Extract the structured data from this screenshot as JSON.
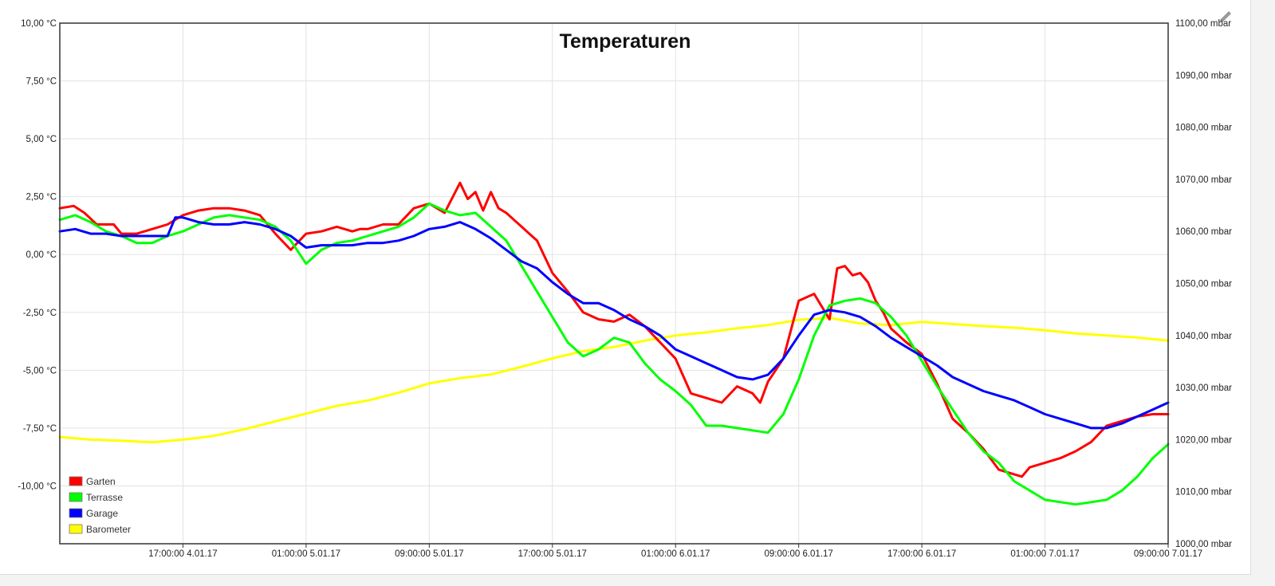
{
  "chart_data": {
    "type": "line",
    "title": "Temperaturen",
    "xlabel": "",
    "ylabel": "",
    "grid": true,
    "legend_position": "bottom-left",
    "x_ticks": [
      "17:00:00 4.01.17",
      "01:00:00 5.01.17",
      "09:00:00 5.01.17",
      "17:00:00 5.01.17",
      "01:00:00 6.01.17",
      "09:00:00 6.01.17",
      "17:00:00 6.01.17",
      "01:00:00 7.01.17",
      "09:00:00 7.01.17"
    ],
    "x_tick_hours": [
      8,
      16,
      24,
      32,
      40,
      48,
      56,
      64,
      72
    ],
    "xlim_hours": [
      0,
      72
    ],
    "y_left": {
      "ylim": [
        -12.5,
        10
      ],
      "ticks": [
        10,
        7.5,
        5,
        2.5,
        0,
        -2.5,
        -5,
        -7.5,
        -10
      ],
      "tick_labels": [
        "10,00 °C",
        "7,50 °C",
        "5,00 °C",
        "2,50 °C",
        "0,00 °C",
        "-2,50 °C",
        "-5,00 °C",
        "-7,50 °C",
        "-10,00 °C"
      ]
    },
    "y_right": {
      "ylim": [
        1000,
        1100
      ],
      "ticks": [
        1100,
        1090,
        1080,
        1070,
        1060,
        1050,
        1040,
        1030,
        1020,
        1010,
        1000
      ],
      "tick_labels": [
        "1100,00 mbar",
        "1090,00 mbar",
        "1080,00 mbar",
        "1070,00 mbar",
        "1060,00 mbar",
        "1050,00 mbar",
        "1040,00 mbar",
        "1030,00 mbar",
        "1020,00 mbar",
        "1010,00 mbar",
        "1000,00 mbar"
      ]
    },
    "series": [
      {
        "name": "Garten",
        "color": "#ff0000",
        "axis": "left",
        "x": [
          0,
          0.9,
          1.6,
          2.4,
          3,
          3.5,
          4,
          5,
          6,
          7,
          8,
          9,
          10,
          11,
          12,
          13,
          14,
          15,
          16,
          17,
          18,
          19,
          19.5,
          20,
          21,
          22,
          23,
          24,
          25,
          26,
          26.5,
          27,
          27.5,
          28,
          28.5,
          29,
          29.5,
          30,
          30.5,
          31,
          32,
          33,
          34,
          35,
          36,
          37,
          38,
          39,
          40,
          41,
          42,
          43,
          44,
          45,
          45.5,
          46,
          47,
          48,
          49,
          50,
          50.5,
          51,
          51.5,
          52,
          52.5,
          53,
          53.5,
          54,
          55,
          56,
          57,
          58,
          59,
          60,
          61,
          62,
          62.5,
          63,
          64,
          65,
          66,
          67,
          68,
          69,
          70,
          71,
          72
        ],
        "y": [
          2,
          2.1,
          1.8,
          1.3,
          1.3,
          1.3,
          0.9,
          0.9,
          1.1,
          1.3,
          1.7,
          1.9,
          2,
          2,
          1.9,
          1.7,
          0.9,
          0.2,
          0.9,
          1,
          1.2,
          1,
          1.1,
          1.1,
          1.3,
          1.3,
          2,
          2.2,
          1.8,
          3.1,
          2.4,
          2.7,
          1.9,
          2.7,
          2,
          1.8,
          1.5,
          1.2,
          0.9,
          0.6,
          -0.8,
          -1.6,
          -2.5,
          -2.8,
          -2.9,
          -2.6,
          -3.1,
          -3.8,
          -4.5,
          -6,
          -6.2,
          -6.4,
          -5.7,
          -6,
          -6.4,
          -5.5,
          -4.5,
          -2,
          -1.7,
          -2.8,
          -0.6,
          -0.5,
          -0.9,
          -0.8,
          -1.2,
          -2,
          -2.5,
          -3.2,
          -3.8,
          -4.3,
          -5.6,
          -7.1,
          -7.7,
          -8.4,
          -9.3,
          -9.5,
          -9.6,
          -9.2,
          -9,
          -8.8,
          -8.5,
          -8.1,
          -7.4,
          -7.2,
          -7,
          -6.9,
          -6.9
        ]
      },
      {
        "name": "Terrasse",
        "color": "#00ff00",
        "axis": "left",
        "x": [
          0,
          1,
          2,
          3,
          4,
          5,
          5.5,
          6,
          7,
          8,
          9,
          10,
          11,
          12,
          13,
          14,
          15,
          16,
          17,
          18,
          19,
          20,
          21,
          22,
          23,
          24,
          25,
          26,
          27,
          28,
          29,
          30,
          31,
          32,
          33,
          34,
          35,
          36,
          37,
          38,
          39,
          40,
          41,
          42,
          43,
          44,
          45,
          46,
          47,
          48,
          49,
          50,
          51,
          52,
          53,
          54,
          55,
          56,
          57,
          58,
          59,
          60,
          61,
          62,
          63,
          64,
          65,
          66,
          67,
          68,
          69,
          70,
          71,
          72
        ],
        "y": [
          1.5,
          1.7,
          1.4,
          1.0,
          0.8,
          0.5,
          0.5,
          0.5,
          0.8,
          1,
          1.3,
          1.6,
          1.7,
          1.6,
          1.5,
          1.2,
          0.6,
          -0.4,
          0.2,
          0.5,
          0.6,
          0.8,
          1,
          1.2,
          1.6,
          2.2,
          1.9,
          1.7,
          1.8,
          1.2,
          0.6,
          -0.5,
          -1.6,
          -2.7,
          -3.8,
          -4.4,
          -4.1,
          -3.6,
          -3.8,
          -4.7,
          -5.4,
          -5.9,
          -6.5,
          -7.4,
          -7.4,
          -7.5,
          -7.6,
          -7.7,
          -6.9,
          -5.4,
          -3.5,
          -2.2,
          -2.0,
          -1.9,
          -2.1,
          -2.7,
          -3.5,
          -4.6,
          -5.7,
          -6.7,
          -7.7,
          -8.5,
          -9,
          -9.8,
          -10.2,
          -10.6,
          -10.7,
          -10.8,
          -10.7,
          -10.6,
          -10.2,
          -9.6,
          -8.8,
          -8.2
        ]
      },
      {
        "name": "Garage",
        "color": "#0000ff",
        "axis": "left",
        "x": [
          0,
          1,
          2,
          3,
          4,
          5,
          6,
          7,
          7.5,
          8,
          9,
          10,
          11,
          12,
          13,
          14,
          15,
          16,
          17,
          18,
          19,
          20,
          21,
          22,
          23,
          24,
          25,
          26,
          27,
          28,
          29,
          30,
          31,
          32,
          33,
          34,
          35,
          36,
          37,
          38,
          39,
          40,
          41,
          42,
          43,
          44,
          45,
          46,
          47,
          48,
          49,
          50,
          51,
          52,
          53,
          54,
          55,
          56,
          57,
          58,
          59,
          60,
          61,
          62,
          63,
          64,
          65,
          66,
          67,
          68,
          69,
          70,
          71,
          72
        ],
        "y": [
          1,
          1.1,
          0.9,
          0.9,
          0.8,
          0.8,
          0.8,
          0.8,
          1.6,
          1.6,
          1.4,
          1.3,
          1.3,
          1.4,
          1.3,
          1.1,
          0.8,
          0.3,
          0.4,
          0.4,
          0.4,
          0.5,
          0.5,
          0.6,
          0.8,
          1.1,
          1.2,
          1.4,
          1.1,
          0.7,
          0.2,
          -0.3,
          -0.6,
          -1.2,
          -1.7,
          -2.1,
          -2.1,
          -2.4,
          -2.8,
          -3.1,
          -3.5,
          -4.1,
          -4.4,
          -4.7,
          -5.0,
          -5.3,
          -5.4,
          -5.2,
          -4.5,
          -3.5,
          -2.6,
          -2.4,
          -2.5,
          -2.7,
          -3.1,
          -3.6,
          -4,
          -4.4,
          -4.8,
          -5.3,
          -5.6,
          -5.9,
          -6.1,
          -6.3,
          -6.6,
          -6.9,
          -7.1,
          -7.3,
          -7.5,
          -7.5,
          -7.3,
          -7.0,
          -6.7,
          -6.4
        ]
      },
      {
        "name": "Barometer",
        "color": "#ffff00",
        "axis": "right",
        "x": [
          0,
          2,
          4,
          6,
          8,
          10,
          12,
          14,
          16,
          18,
          20,
          22,
          24,
          26,
          28,
          30,
          32,
          34,
          36,
          38,
          40,
          42,
          44,
          46,
          48,
          50,
          52,
          54,
          56,
          58,
          60,
          62,
          64,
          66,
          68,
          70,
          72
        ],
        "y": [
          1020.5,
          1020,
          1019.8,
          1019.5,
          1020,
          1020.7,
          1022,
          1023.5,
          1025,
          1026.5,
          1027.5,
          1029,
          1030.8,
          1031.8,
          1032.5,
          1034,
          1035.6,
          1037,
          1037.8,
          1039,
          1040,
          1040.6,
          1041.4,
          1042,
          1043,
          1043.4,
          1042.3,
          1042,
          1042.6,
          1042.2,
          1041.8,
          1041.5,
          1041,
          1040.4,
          1040,
          1039.6,
          1039
        ]
      }
    ]
  },
  "icons": {
    "edit": "pencil-icon"
  }
}
